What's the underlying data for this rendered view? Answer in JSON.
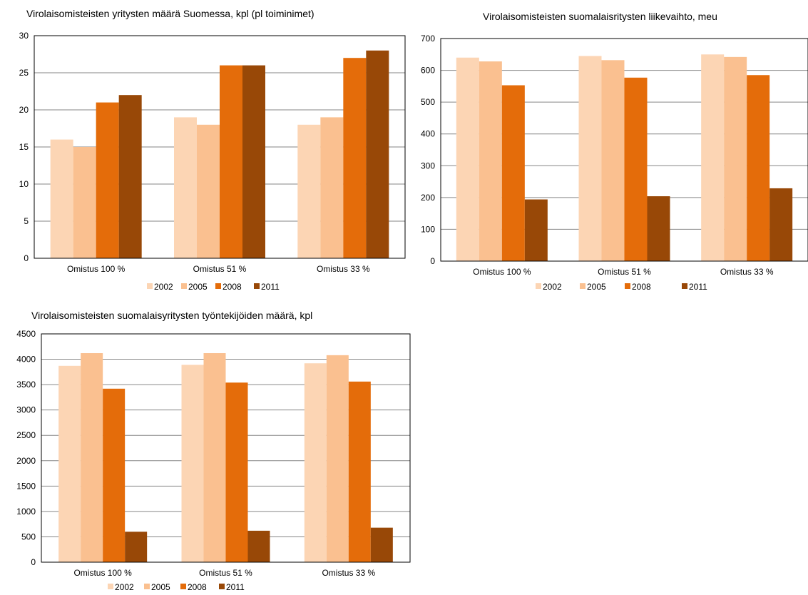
{
  "chart_data": [
    {
      "type": "bar",
      "title": "Virolaisomisteisten yritysten määrä Suomessa, kpl (pl toiminimet)",
      "categories": [
        "Omistus 100 %",
        "Omistus 51 %",
        "Omistus 33 %"
      ],
      "series": [
        {
          "name": "2002",
          "values": [
            16,
            19,
            18
          ]
        },
        {
          "name": "2005",
          "values": [
            15,
            18,
            19
          ]
        },
        {
          "name": "2008",
          "values": [
            21,
            26,
            27
          ]
        },
        {
          "name": "2011",
          "values": [
            22,
            26,
            28
          ]
        }
      ],
      "ylim": [
        0,
        30
      ],
      "yticks": [
        "0",
        "5",
        "10",
        "15",
        "20",
        "25",
        "30"
      ],
      "grid": true,
      "legend": "bottom"
    },
    {
      "type": "bar",
      "title": "Virolaisomisteisten suomalaisritysten liikevaihto, meu",
      "categories": [
        "Omistus 100 %",
        "Omistus 51 %",
        "Omistus 33 %"
      ],
      "series": [
        {
          "name": "2002",
          "values": [
            640,
            645,
            650
          ]
        },
        {
          "name": "2005",
          "values": [
            628,
            632,
            642
          ]
        },
        {
          "name": "2008",
          "values": [
            553,
            577,
            585
          ]
        },
        {
          "name": "2011",
          "values": [
            194,
            204,
            229
          ]
        }
      ],
      "ylim": [
        0,
        700
      ],
      "yticks": [
        "0",
        "100",
        "200",
        "300",
        "400",
        "500",
        "600",
        "700"
      ],
      "grid": true,
      "legend": "bottom"
    },
    {
      "type": "bar",
      "title": "Virolaisomisteisten suomalaisyritysten työntekijöiden määrä, kpl",
      "categories": [
        "Omistus 100 %",
        "Omistus 51 %",
        "Omistus 33 %"
      ],
      "series": [
        {
          "name": "2002",
          "values": [
            3870,
            3890,
            3920
          ]
        },
        {
          "name": "2005",
          "values": [
            4120,
            4120,
            4080
          ]
        },
        {
          "name": "2008",
          "values": [
            3420,
            3540,
            3560
          ]
        },
        {
          "name": "2011",
          "values": [
            600,
            620,
            680
          ]
        }
      ],
      "ylim": [
        0,
        4500
      ],
      "yticks": [
        "0",
        "500",
        "1000",
        "1500",
        "2000",
        "2500",
        "3000",
        "3500",
        "4000",
        "4500"
      ],
      "grid": true,
      "legend": "bottom"
    }
  ],
  "colors": {
    "series": [
      "#FCD5B4",
      "#FAC090",
      "#E46C0A",
      "#984807"
    ],
    "gridline": "#868686",
    "plot_border": "#000000"
  }
}
